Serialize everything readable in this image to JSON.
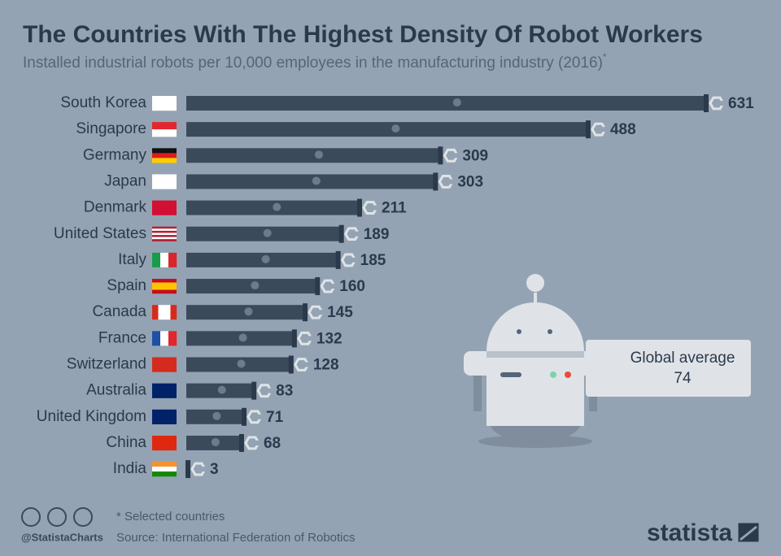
{
  "chart_data": {
    "type": "bar",
    "title": "The Countries With The Highest Density Of Robot Workers",
    "subtitle": "Installed industrial robots per 10,000 employees in the manufacturing industry (2016)",
    "subtitle_note": "*",
    "categories": [
      "South Korea",
      "Singapore",
      "Germany",
      "Japan",
      "Denmark",
      "United States",
      "Italy",
      "Spain",
      "Canada",
      "France",
      "Switzerland",
      "Australia",
      "United Kingdom",
      "China",
      "India"
    ],
    "values": [
      631,
      488,
      309,
      303,
      211,
      189,
      185,
      160,
      145,
      132,
      128,
      83,
      71,
      68,
      3
    ],
    "color": "#3a4a5b",
    "annotation": {
      "label": "Global average",
      "value": 74
    },
    "footnote": "* Selected countries",
    "source": "Source: International Federation of Robotics",
    "handle": "@StatistaCharts",
    "brand": "statista"
  }
}
